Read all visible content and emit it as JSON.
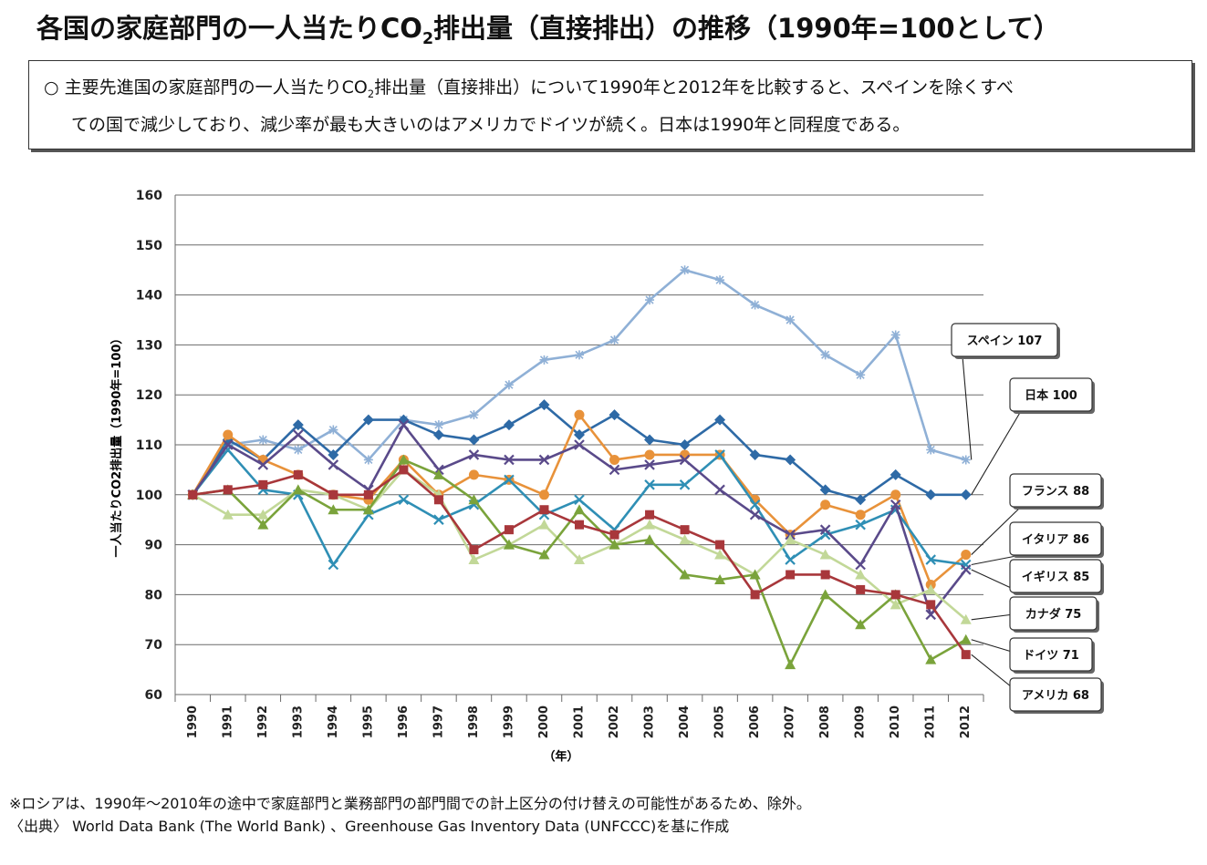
{
  "header": {
    "title_before": "各国の家庭部門の一人当たりCO",
    "title_sub": "2",
    "title_after": "排出量（直接排出）の推移（1990年=100として）"
  },
  "summary": {
    "bullet": "○",
    "l1_before": "主要先進国の家庭部門の一人当たりCO",
    "l1_sub": "2",
    "l1_after": "排出量（直接排出）について1990年と2012年を比較すると、スペインを除くすべ",
    "line2": "ての国で減少しており、減少率が最も大きいのはアメリカでドイツが続く。日本は1990年と同程度である。"
  },
  "footer": {
    "note": "※ロシアは、1990年～2010年の途中で家庭部門と業務部門の部門間での計上区分の付け替えの可能性があるため、除外。",
    "source": "〈出典〉 World Data Bank (The World Bank) 、Greenhouse Gas Inventory Data (UNFCCC)を基に作成"
  },
  "chart_data": {
    "type": "line",
    "ylabel": "一人当たりCO2排出量（1990年=100）",
    "xlabel": "（年）",
    "ylim": [
      60,
      160
    ],
    "yticks": [
      60,
      70,
      80,
      90,
      100,
      110,
      120,
      130,
      140,
      150,
      160
    ],
    "grid": true,
    "categories": [
      "1990",
      "1991",
      "1992",
      "1993",
      "1994",
      "1995",
      "1996",
      "1997",
      "1998",
      "1999",
      "2000",
      "2001",
      "2002",
      "2003",
      "2004",
      "2005",
      "2006",
      "2007",
      "2008",
      "2009",
      "2010",
      "2011",
      "2012"
    ],
    "series": [
      {
        "name": "スペイン",
        "label": "スペイン 107",
        "color": "#8fb0d6",
        "marker": "star",
        "values": [
          100,
          110,
          111,
          109,
          113,
          107,
          115,
          114,
          116,
          122,
          127,
          128,
          131,
          139,
          145,
          143,
          138,
          135,
          128,
          124,
          132,
          109,
          107
        ]
      },
      {
        "name": "日本",
        "label": "日本 100",
        "color": "#2e6aa6",
        "marker": "diamond",
        "values": [
          100,
          111,
          107,
          114,
          108,
          115,
          115,
          112,
          111,
          114,
          118,
          112,
          116,
          111,
          110,
          115,
          108,
          107,
          101,
          99,
          104,
          100,
          100
        ]
      },
      {
        "name": "フランス",
        "label": "フランス 88",
        "color": "#e8923a",
        "marker": "circle",
        "values": [
          100,
          112,
          107,
          104,
          100,
          99,
          107,
          100,
          104,
          103,
          100,
          116,
          107,
          108,
          108,
          108,
          99,
          92,
          98,
          96,
          100,
          82,
          88
        ]
      },
      {
        "name": "イタリア",
        "label": "イタリア 86",
        "color": "#2f8fb5",
        "marker": "x",
        "values": [
          100,
          109,
          101,
          100,
          86,
          96,
          99,
          95,
          98,
          103,
          96,
          99,
          93,
          102,
          102,
          108,
          98,
          87,
          92,
          94,
          97,
          87,
          86
        ]
      },
      {
        "name": "イギリス",
        "label": "イギリス 85",
        "color": "#5a4a8a",
        "marker": "x",
        "values": [
          100,
          110,
          106,
          112,
          106,
          101,
          114,
          105,
          108,
          107,
          107,
          110,
          105,
          106,
          107,
          101,
          96,
          92,
          93,
          86,
          98,
          76,
          85
        ]
      },
      {
        "name": "カナダ",
        "label": "カナダ 75",
        "color": "#c2d898",
        "marker": "triangle",
        "values": [
          100,
          96,
          96,
          101,
          100,
          97,
          105,
          100,
          87,
          90,
          94,
          87,
          90,
          94,
          91,
          88,
          84,
          91,
          88,
          84,
          78,
          81,
          75
        ]
      },
      {
        "name": "ドイツ",
        "label": "ドイツ 71",
        "color": "#7aa33b",
        "marker": "triangle",
        "values": [
          100,
          101,
          94,
          101,
          97,
          97,
          107,
          104,
          99,
          90,
          88,
          97,
          90,
          91,
          84,
          83,
          84,
          66,
          80,
          74,
          80,
          67,
          71
        ]
      },
      {
        "name": "アメリカ",
        "label": "アメリカ 68",
        "color": "#a8373b",
        "marker": "square",
        "values": [
          100,
          101,
          102,
          104,
          100,
          100,
          105,
          99,
          89,
          93,
          97,
          94,
          92,
          96,
          93,
          90,
          80,
          84,
          84,
          81,
          80,
          78,
          68
        ]
      }
    ]
  }
}
